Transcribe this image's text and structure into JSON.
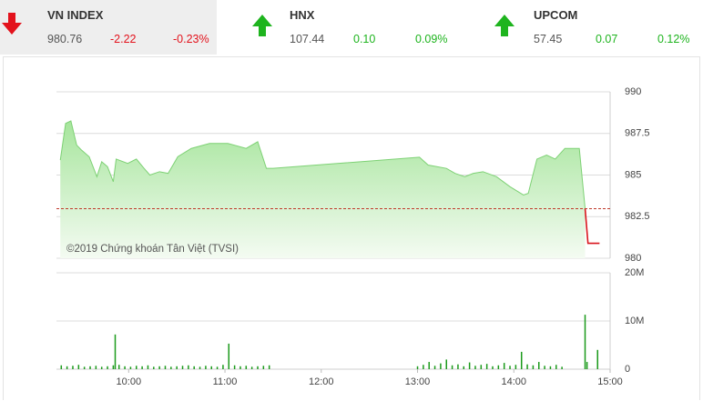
{
  "indices": [
    {
      "name": "VN INDEX",
      "value": "980.76",
      "change": "-2.22",
      "change_pct": "-0.23%",
      "trend": "down",
      "color": "#e3121c"
    },
    {
      "name": "HNX",
      "value": "107.44",
      "change": "0.10",
      "change_pct": "0.09%",
      "trend": "up",
      "color": "#1eb41e"
    },
    {
      "name": "UPCOM",
      "value": "57.45",
      "change": "0.07",
      "change_pct": "0.12%",
      "trend": "up",
      "color": "#1eb41e"
    }
  ],
  "chart_data": [
    {
      "type": "area",
      "watermark": "©2019 Chứng khoán Tân Việt (TVSI)",
      "xlim": [
        9.25,
        15
      ],
      "ylim": [
        980,
        990
      ],
      "yticks": [
        990,
        987.5,
        985,
        982.5,
        980
      ],
      "grid": true,
      "reference": 982.98,
      "reference_color": "#c0392b",
      "series": [
        {
          "color": "#7dd174",
          "fill": true,
          "x": [
            9.29,
            9.345,
            9.4,
            9.46,
            9.51,
            9.59,
            9.67,
            9.72,
            9.78,
            9.84,
            9.87,
            9.99,
            10.08,
            10.16,
            10.22,
            10.32,
            10.41,
            10.51,
            10.65,
            10.84,
            11.03,
            11.22,
            11.34,
            11.43,
            11.5,
            13.02,
            13.11,
            13.3,
            13.39,
            13.49,
            13.58,
            13.68,
            13.82,
            13.96,
            14.1,
            14.15,
            14.24,
            14.34,
            14.43,
            14.53,
            14.68,
            14.74
          ],
          "values": [
            985.9,
            988.1,
            988.25,
            986.8,
            986.5,
            986.1,
            984.9,
            985.8,
            985.5,
            984.6,
            985.96,
            985.7,
            985.96,
            985.4,
            985.0,
            985.2,
            985.1,
            986.1,
            986.6,
            986.9,
            986.9,
            986.6,
            987.0,
            985.4,
            985.4,
            986.07,
            985.6,
            985.4,
            985.1,
            984.9,
            985.1,
            985.2,
            984.9,
            984.3,
            983.8,
            983.9,
            985.96,
            986.2,
            985.96,
            986.6,
            986.6,
            983.0
          ]
        },
        {
          "color": "#d9141c",
          "fill": false,
          "x": [
            14.74,
            14.77,
            14.89
          ],
          "values": [
            983.0,
            980.9,
            980.9
          ]
        }
      ]
    },
    {
      "type": "bar",
      "xlim": [
        9.25,
        15
      ],
      "xticks": [
        {
          "value": 10,
          "label": "10:00"
        },
        {
          "value": 11,
          "label": "11:00"
        },
        {
          "value": 12,
          "label": "12:00"
        },
        {
          "value": 13,
          "label": "13:00"
        },
        {
          "value": 14,
          "label": "14:00"
        },
        {
          "value": 15,
          "label": "15:00"
        }
      ],
      "ylim": [
        0,
        20000000
      ],
      "yticks": [
        {
          "value": 20000000,
          "label": "20M"
        },
        {
          "value": 10000000,
          "label": "10M"
        },
        0
      ],
      "grid": true,
      "color": "#1a9a1a",
      "x": [
        9.3,
        9.36,
        9.42,
        9.48,
        9.54,
        9.6,
        9.66,
        9.72,
        9.78,
        9.84,
        9.86,
        9.9,
        9.96,
        10.02,
        10.08,
        10.14,
        10.2,
        10.26,
        10.32,
        10.38,
        10.44,
        10.5,
        10.56,
        10.62,
        10.68,
        10.74,
        10.8,
        10.86,
        10.92,
        10.98,
        11.04,
        11.1,
        11.16,
        11.22,
        11.28,
        11.34,
        11.4,
        11.46,
        13.0,
        13.06,
        13.12,
        13.18,
        13.24,
        13.3,
        13.36,
        13.42,
        13.48,
        13.54,
        13.6,
        13.66,
        13.72,
        13.78,
        13.84,
        13.9,
        13.96,
        14.02,
        14.08,
        14.14,
        14.2,
        14.26,
        14.32,
        14.38,
        14.44,
        14.5,
        14.74,
        14.76,
        14.87
      ],
      "values": [
        800000,
        600000,
        700000,
        900000,
        500000,
        600000,
        700000,
        500000,
        600000,
        800000,
        7200000,
        900000,
        600000,
        500000,
        700000,
        600000,
        800000,
        500000,
        600000,
        700000,
        500000,
        600000,
        700000,
        800000,
        600000,
        500000,
        700000,
        600000,
        500000,
        900000,
        5300000,
        800000,
        600000,
        700000,
        500000,
        600000,
        700000,
        800000,
        600000,
        900000,
        1500000,
        700000,
        1200000,
        2000000,
        800000,
        1000000,
        600000,
        1400000,
        700000,
        900000,
        1100000,
        600000,
        800000,
        1300000,
        700000,
        900000,
        3600000,
        1000000,
        800000,
        1500000,
        700000,
        600000,
        900000,
        500000,
        11300000,
        1500000,
        4000000
      ]
    }
  ]
}
